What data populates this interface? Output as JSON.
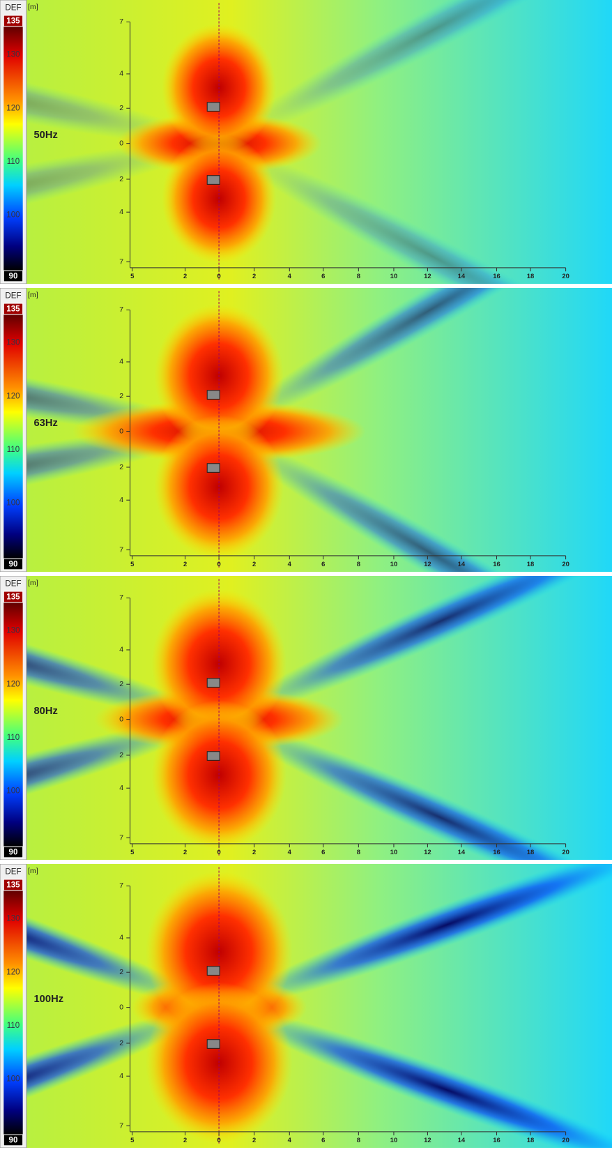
{
  "unit": "[m]",
  "colorbar": {
    "mode": "DEF",
    "max": "135",
    "min": "90",
    "ticks": [
      "130",
      "120",
      "110",
      "100"
    ]
  },
  "yticks": [
    "7",
    "4",
    "2",
    "0",
    "2",
    "4",
    "7"
  ],
  "xticks": [
    "5",
    "2",
    "0",
    "2",
    "4",
    "6",
    "8",
    "10",
    "12",
    "14",
    "16",
    "18",
    "20"
  ],
  "panels": [
    {
      "label": "50Hz"
    },
    {
      "label": "63Hz"
    },
    {
      "label": "80Hz"
    },
    {
      "label": "100Hz"
    }
  ]
}
